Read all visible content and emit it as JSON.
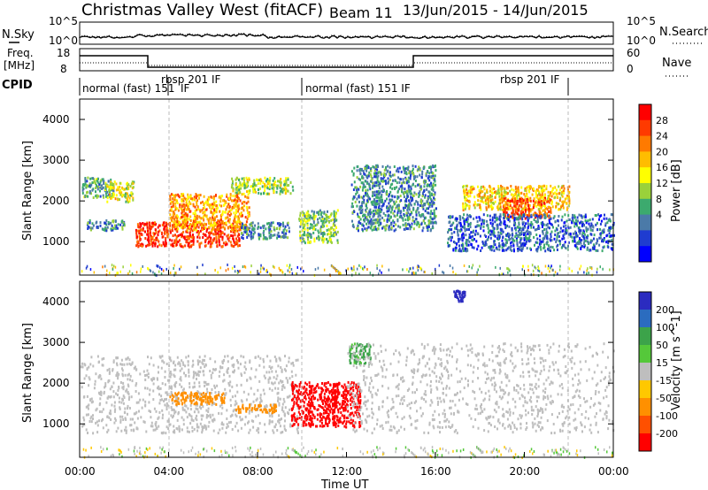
{
  "header": {
    "station": "Christmas Valley West (fitACF)",
    "beam": "Beam 11",
    "date_range": "13/Jun/2015 - 14/Jun/2015"
  },
  "panels": {
    "nsky": {
      "label": "N.Sky",
      "ticks": [
        "10^5",
        "10^0"
      ],
      "right_label": "N.Search",
      "right_ticks": [
        "10^5",
        "10^0"
      ]
    },
    "freq": {
      "label_line1": "Freq.",
      "label_line2": "[MHz]",
      "ticks": [
        "18",
        "8"
      ],
      "right_label": "Nave",
      "right_ticks": [
        "60",
        "0"
      ]
    },
    "cpid": {
      "label": "CPID",
      "modes": [
        {
          "text": "normal (fast) 151",
          "start_h": 0.0
        },
        {
          "text": "IF",
          "start_h": 3.0
        },
        {
          "text": "rbsp 201 IF",
          "start_h": 4.0
        },
        {
          "text": "normal (fast) 151 IF",
          "start_h": 10.0
        },
        {
          "text": "rbsp 201 IF",
          "start_h": 20.0
        }
      ],
      "boundaries_h": [
        3.0,
        9.95,
        22.0
      ]
    }
  },
  "colorbars": {
    "power": {
      "title": "Power [dB]",
      "ticks": [
        "28",
        "24",
        "20",
        "16",
        "12",
        "8",
        "4"
      ],
      "colors": [
        "#ff0000",
        "#ff3a00",
        "#ff7a00",
        "#ffbd00",
        "#ffff00",
        "#9ad13a",
        "#3caa6e",
        "#4b7aa8",
        "#1f3cd0",
        "#0000ff"
      ]
    },
    "velocity": {
      "title": "Velocity [m s^-1]",
      "ticks": [
        "200",
        "100",
        "50",
        "15",
        "-15",
        "-50",
        "-100",
        "-200"
      ],
      "colors": [
        "#2b2bc0",
        "#2b6cbf",
        "#3ca34a",
        "#55c83a",
        "#bebebe",
        "#ffc800",
        "#ff9000",
        "#ff5000",
        "#ff0000"
      ]
    }
  },
  "axes": {
    "ylabel": "Slant Range [km]",
    "yticks": [
      "4000",
      "3000",
      "2000",
      "1000"
    ],
    "xlabel": "Time UT",
    "xticks": [
      "00:00",
      "04:00",
      "08:00",
      "12:00",
      "16:00",
      "20:00",
      "00:00"
    ]
  },
  "chart_data": {
    "type": "heatmap",
    "x_range_hours": [
      0,
      24
    ],
    "y_range_km": [
      180,
      4500
    ],
    "series": [
      {
        "name": "Power [dB]",
        "echo_regions": [
          {
            "t": [
              0.1,
              1.5
            ],
            "r": [
              2100,
              2600
            ],
            "value": 12
          },
          {
            "t": [
              1.2,
              2.4
            ],
            "r": [
              2000,
              2500
            ],
            "value": 18
          },
          {
            "t": [
              0.3,
              2.0
            ],
            "r": [
              1300,
              1550
            ],
            "value": 10
          },
          {
            "t": [
              2.5,
              7.2
            ],
            "r": [
              900,
              1500
            ],
            "value": 28
          },
          {
            "t": [
              4.0,
              7.6
            ],
            "r": [
              1300,
              2200
            ],
            "value": 22
          },
          {
            "t": [
              6.8,
              9.6
            ],
            "r": [
              2200,
              2600
            ],
            "value": 16
          },
          {
            "t": [
              7.2,
              9.4
            ],
            "r": [
              1100,
              1500
            ],
            "value": 10
          },
          {
            "t": [
              9.8,
              11.6
            ],
            "r": [
              1000,
              1800
            ],
            "value": 14
          },
          {
            "t": [
              12.2,
              16.0
            ],
            "r": [
              1300,
              2900
            ],
            "value": 10
          },
          {
            "t": [
              17.2,
              22.0
            ],
            "r": [
              1800,
              2400
            ],
            "value": 20
          },
          {
            "t": [
              19.0,
              21.2
            ],
            "r": [
              1600,
              2100
            ],
            "value": 26
          },
          {
            "t": [
              16.5,
              24.0
            ],
            "r": [
              800,
              1700
            ],
            "value": 8
          }
        ]
      },
      {
        "name": "Velocity [m s^-1]",
        "echo_regions": [
          {
            "t": [
              0.0,
              9.8
            ],
            "r": [
              800,
              2700
            ],
            "value": 0
          },
          {
            "t": [
              4.0,
              6.5
            ],
            "r": [
              1500,
              1800
            ],
            "value": -60
          },
          {
            "t": [
              7.0,
              8.8
            ],
            "r": [
              1300,
              1500
            ],
            "value": -50
          },
          {
            "t": [
              9.5,
              12.6
            ],
            "r": [
              950,
              2050
            ],
            "value": -180
          },
          {
            "t": [
              12.1,
              13.1
            ],
            "r": [
              2500,
              3000
            ],
            "value": 40
          },
          {
            "t": [
              12.0,
              24.0
            ],
            "r": [
              800,
              3000
            ],
            "value": 0
          },
          {
            "t": [
              16.8,
              17.3
            ],
            "r": [
              4000,
              4300
            ],
            "value": 220
          }
        ]
      }
    ]
  }
}
